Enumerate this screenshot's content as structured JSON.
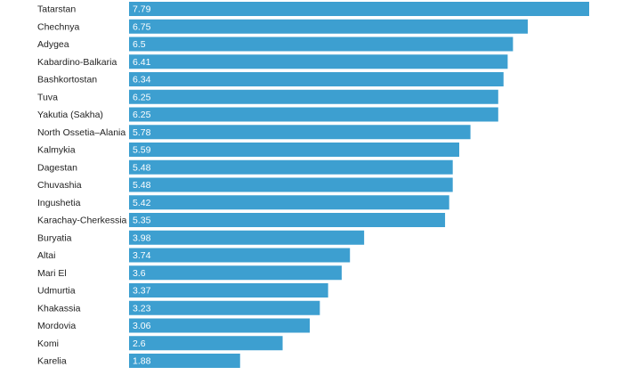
{
  "chart_data": {
    "type": "bar",
    "orientation": "horizontal",
    "categories": [
      "Tatarstan",
      "Chechnya",
      "Adygea",
      "Kabardino-Balkaria",
      "Bashkortostan",
      "Tuva",
      "Yakutia (Sakha)",
      "North Ossetia–Alania",
      "Kalmykia",
      "Dagestan",
      "Chuvashia",
      "Ingushetia",
      "Karachay-Cherkessia",
      "Buryatia",
      "Altai",
      "Mari El",
      "Udmurtia",
      "Khakassia",
      "Mordovia",
      "Komi",
      "Karelia"
    ],
    "values": [
      7.79,
      6.75,
      6.5,
      6.41,
      6.34,
      6.25,
      6.25,
      5.78,
      5.59,
      5.48,
      5.48,
      5.42,
      5.35,
      3.98,
      3.74,
      3.6,
      3.37,
      3.23,
      3.06,
      2.6,
      1.88
    ],
    "value_labels": [
      "7.79",
      "6.75",
      "6.5",
      "6.41",
      "6.34",
      "6.25",
      "6.25",
      "5.78",
      "5.59",
      "5.48",
      "5.48",
      "5.42",
      "5.35",
      "3.98",
      "3.74",
      "3.6",
      "3.37",
      "3.23",
      "3.06",
      "2.6",
      "1.88"
    ],
    "xlim": [
      0,
      7.79
    ],
    "bar_color": "#3d9fd0",
    "grid": false,
    "legend": "none"
  }
}
